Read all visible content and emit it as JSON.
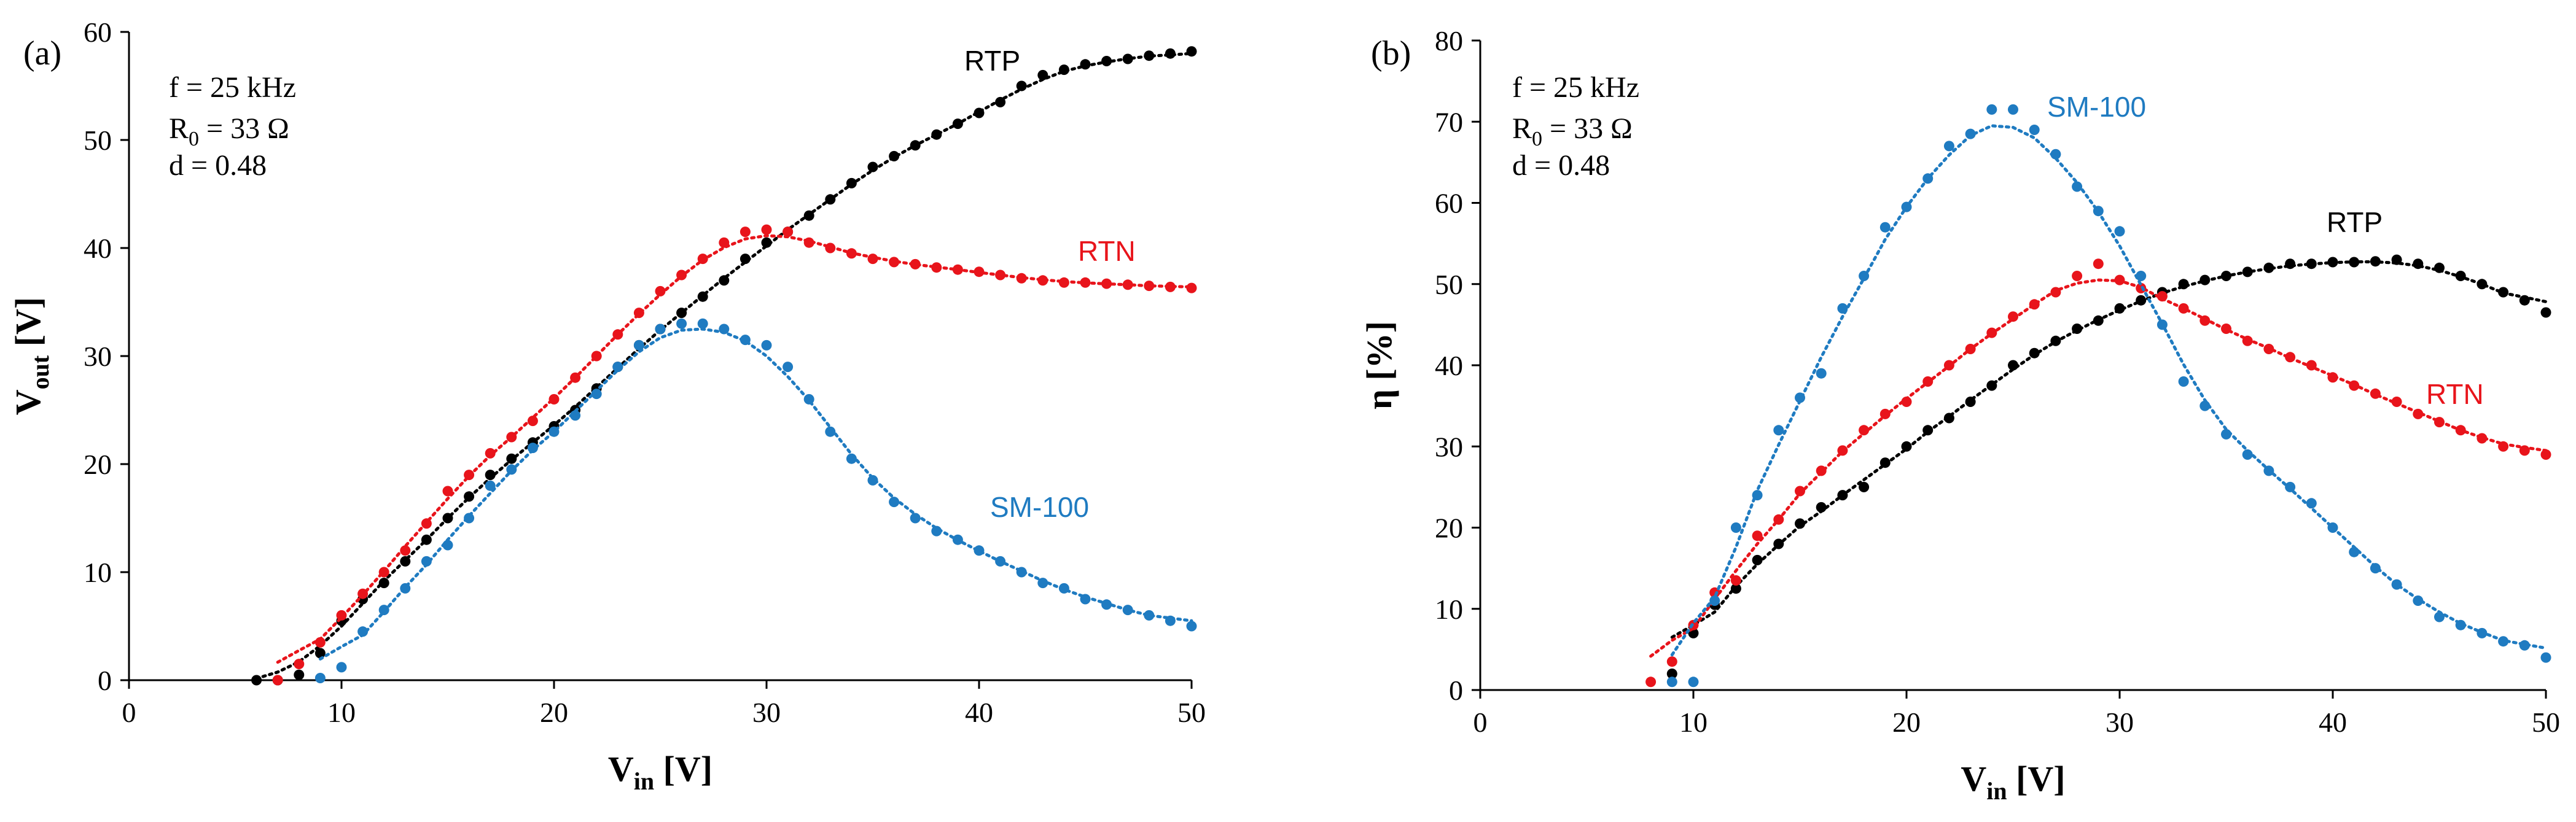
{
  "figure": {
    "colors": {
      "RTP": "#000000",
      "RTN": "#e8141b",
      "SM-100": "#1f7bc1"
    }
  },
  "chart_data": [
    {
      "type": "scatter",
      "panel_label": "(a)",
      "annotations": [
        "f = 25 kHz",
        "R",
        "0",
        " = 33 Ω",
        "d = 0.48"
      ],
      "xlabel": {
        "main": "V",
        "sub": "in",
        "unit": " [V]"
      },
      "ylabel": {
        "main": "V",
        "sub": "out",
        "unit": " [V]"
      },
      "xlim": [
        0,
        50
      ],
      "ylim": [
        0,
        60
      ],
      "xticks": [
        0,
        10,
        20,
        30,
        40,
        50
      ],
      "yticks": [
        0,
        10,
        20,
        30,
        40,
        50,
        60
      ],
      "grid": false,
      "series": [
        {
          "name": "RTP",
          "x": [
            6,
            7,
            8,
            9,
            10,
            11,
            12,
            13,
            14,
            15,
            16,
            17,
            18,
            19,
            20,
            21,
            22,
            23,
            24,
            25,
            26,
            27,
            28,
            29,
            30,
            31,
            32,
            33,
            34,
            35,
            36,
            37,
            38,
            39,
            40,
            41,
            42,
            43,
            44,
            45,
            46,
            47,
            48,
            49,
            50
          ],
          "y": [
            0,
            0,
            0.5,
            2.5,
            5.5,
            7.5,
            9,
            11,
            13,
            15,
            17,
            19,
            20.5,
            22,
            23.5,
            25,
            27,
            29,
            31,
            32.5,
            34,
            35.5,
            37,
            39,
            40.5,
            41.5,
            43,
            44.5,
            46,
            47.5,
            48.5,
            49.5,
            50.5,
            51.5,
            52.5,
            53.5,
            55,
            56,
            56.5,
            57,
            57.3,
            57.5,
            57.8,
            58,
            58.2
          ]
        },
        {
          "name": "RTN",
          "x": [
            7,
            8,
            9,
            10,
            11,
            12,
            13,
            14,
            15,
            16,
            17,
            18,
            19,
            20,
            21,
            22,
            23,
            24,
            25,
            26,
            27,
            28,
            29,
            30,
            31,
            32,
            33,
            34,
            35,
            36,
            37,
            38,
            39,
            40,
            41,
            42,
            43,
            44,
            45,
            46,
            47,
            48,
            49,
            50
          ],
          "y": [
            0,
            1.5,
            3.5,
            6,
            8,
            10,
            12,
            14.5,
            17.5,
            19,
            21,
            22.5,
            24,
            26,
            28,
            30,
            32,
            34,
            36,
            37.5,
            39,
            40.5,
            41.5,
            41.7,
            41.5,
            40.5,
            40,
            39.5,
            39,
            38.7,
            38.5,
            38.2,
            38,
            37.8,
            37.5,
            37.2,
            37,
            36.8,
            36.8,
            36.7,
            36.6,
            36.5,
            36.4,
            36.3
          ]
        },
        {
          "name": "SM-100",
          "x": [
            9,
            10,
            11,
            12,
            13,
            14,
            15,
            16,
            17,
            18,
            19,
            20,
            21,
            22,
            23,
            24,
            25,
            26,
            27,
            28,
            29,
            30,
            31,
            32,
            33,
            34,
            35,
            36,
            37,
            38,
            39,
            40,
            41,
            42,
            43,
            44,
            45,
            46,
            47,
            48,
            49,
            50
          ],
          "y": [
            0.2,
            1.2,
            4.5,
            6.5,
            8.5,
            11,
            12.5,
            15,
            18,
            19.5,
            21.5,
            23,
            24.5,
            26.5,
            29,
            31,
            32.5,
            33,
            33,
            32.5,
            31.5,
            31,
            29,
            26,
            23,
            20.5,
            18.5,
            16.5,
            15,
            13.8,
            13,
            12,
            11,
            10,
            9,
            8.5,
            7.5,
            7,
            6.5,
            6,
            5.5,
            5
          ]
        }
      ]
    },
    {
      "type": "scatter",
      "panel_label": "(b)",
      "annotations": [
        "f = 25 kHz",
        "R",
        "0",
        " = 33 Ω",
        "d = 0.48"
      ],
      "xlabel": {
        "main": "V",
        "sub": "in",
        "unit": " [V]"
      },
      "ylabel": {
        "main": "η",
        "sub": "",
        "unit": " [%]"
      },
      "xlim": [
        0,
        50
      ],
      "ylim": [
        0,
        80
      ],
      "xticks": [
        0,
        10,
        20,
        30,
        40,
        50
      ],
      "yticks": [
        0,
        10,
        20,
        30,
        40,
        50,
        60,
        70,
        80
      ],
      "grid": false,
      "series": [
        {
          "name": "RTP",
          "x": [
            9,
            10,
            11,
            12,
            13,
            14,
            15,
            16,
            17,
            18,
            19,
            20,
            21,
            22,
            23,
            24,
            25,
            26,
            27,
            28,
            29,
            30,
            31,
            32,
            33,
            34,
            35,
            36,
            37,
            38,
            39,
            40,
            41,
            42,
            43,
            44,
            45,
            46,
            47,
            48,
            49,
            50
          ],
          "y": [
            2,
            7,
            10.5,
            12.5,
            16,
            18,
            20.5,
            22.5,
            24,
            25,
            28,
            30,
            32,
            33.5,
            35.5,
            37.5,
            40,
            41.5,
            43,
            44.5,
            45.5,
            47,
            48,
            49,
            50,
            50.5,
            51,
            51.5,
            52,
            52.5,
            52.5,
            52.7,
            52.7,
            52.8,
            53,
            52.5,
            52,
            51,
            50,
            49,
            48,
            46.5
          ]
        },
        {
          "name": "RTN",
          "x": [
            8,
            9,
            10,
            11,
            12,
            13,
            14,
            15,
            16,
            17,
            18,
            19,
            20,
            21,
            22,
            23,
            24,
            25,
            26,
            27,
            28,
            29,
            30,
            31,
            32,
            33,
            34,
            35,
            36,
            37,
            38,
            39,
            40,
            41,
            42,
            43,
            44,
            45,
            46,
            47,
            48,
            49,
            50
          ],
          "y": [
            1,
            3.5,
            8,
            12,
            13.5,
            19,
            21,
            24.5,
            27,
            29.5,
            32,
            34,
            35.5,
            38,
            40,
            42,
            44,
            46,
            47.5,
            49,
            51,
            52.5,
            50.5,
            49.5,
            48.5,
            47,
            45.5,
            44.5,
            43,
            42,
            41,
            40,
            38.5,
            37.5,
            36.5,
            35.5,
            34,
            33,
            32,
            31,
            30,
            29.5,
            29
          ]
        },
        {
          "name": "SM-100",
          "x": [
            9,
            10,
            11,
            12,
            13,
            14,
            15,
            16,
            17,
            18,
            19,
            20,
            21,
            22,
            23,
            24,
            25,
            26,
            27,
            28,
            29,
            30,
            31,
            32,
            33,
            34,
            35,
            36,
            37,
            38,
            39,
            40,
            41,
            42,
            43,
            44,
            45,
            46,
            47,
            48,
            49,
            50
          ],
          "y": [
            1,
            1,
            11,
            20,
            24,
            32,
            36,
            39,
            47,
            51,
            57,
            59.5,
            63,
            67,
            68.5,
            71.5,
            71.5,
            69,
            66,
            62,
            59,
            56.5,
            51,
            45,
            38,
            35,
            31.5,
            29,
            27,
            25,
            23,
            20,
            17,
            15,
            13,
            11,
            9,
            8,
            7,
            6,
            5.5,
            4
          ]
        }
      ]
    }
  ]
}
